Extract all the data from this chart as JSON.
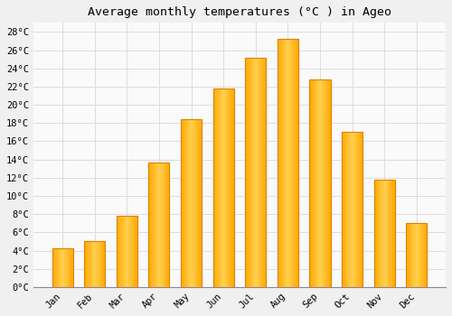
{
  "title": "Average monthly temperatures (°C ) in Ageo",
  "months": [
    "Jan",
    "Feb",
    "Mar",
    "Apr",
    "May",
    "Jun",
    "Jul",
    "Aug",
    "Sep",
    "Oct",
    "Nov",
    "Dec"
  ],
  "values": [
    4.2,
    5.0,
    7.8,
    13.7,
    18.4,
    21.8,
    25.2,
    27.2,
    22.8,
    17.0,
    11.8,
    7.0
  ],
  "bar_color_main": "#FFA800",
  "bar_color_light": "#FFD050",
  "bar_edge_color": "#E08000",
  "ylim": [
    0,
    29
  ],
  "ytick_max": 28,
  "ytick_step": 2,
  "background_color": "#F0F0F0",
  "plot_bg_color": "#FAFAFA",
  "grid_color": "#DDDDDD",
  "title_fontsize": 9.5,
  "tick_fontsize": 7.5
}
